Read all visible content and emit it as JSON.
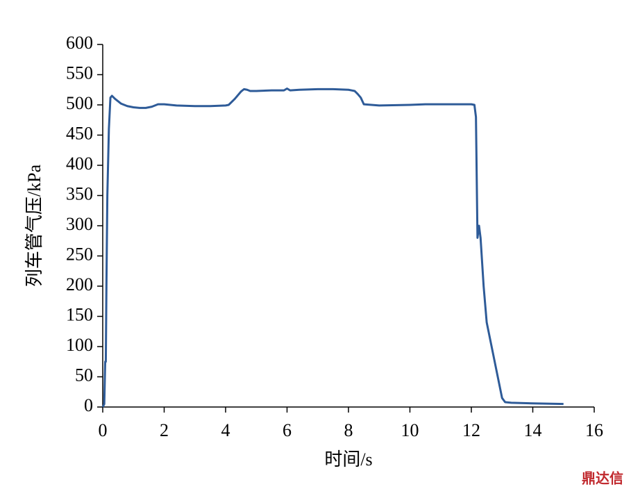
{
  "chart_data": {
    "type": "line",
    "xlabel": "时间/s",
    "ylabel": "列车管气压/kPa",
    "watermark": "鼎达信",
    "xlim": [
      0,
      16
    ],
    "xticks": [
      0,
      2,
      4,
      6,
      8,
      10,
      12,
      14,
      16
    ],
    "ylim": [
      0,
      600
    ],
    "yticks": [
      0,
      50,
      100,
      150,
      200,
      250,
      300,
      350,
      400,
      450,
      500,
      550,
      600
    ],
    "grid": false,
    "series": [
      {
        "color": "#2e5b98",
        "x": [
          0,
          0.05,
          0.08,
          0.1,
          0.12,
          0.15,
          0.2,
          0.25,
          0.3,
          0.4,
          0.6,
          0.8,
          1.0,
          1.2,
          1.4,
          1.6,
          1.8,
          2.0,
          2.4,
          3.0,
          3.5,
          4.0,
          4.1,
          4.3,
          4.5,
          4.6,
          4.7,
          4.8,
          5.0,
          5.5,
          5.9,
          6.0,
          6.1,
          6.4,
          7.0,
          7.5,
          8.0,
          8.2,
          8.3,
          8.4,
          8.5,
          9.0,
          10,
          10.5,
          11,
          12.0,
          12.1,
          12.15,
          12.2,
          12.25,
          12.3,
          12.4,
          12.5,
          12.7,
          12.9,
          13.0,
          13.1,
          13.3,
          14,
          15
        ],
        "values": [
          0,
          5,
          75,
          75,
          200,
          350,
          460,
          512,
          515,
          510,
          502,
          498,
          496,
          495,
          495,
          497,
          501,
          501,
          499,
          498,
          498,
          499,
          500,
          510,
          522,
          526,
          525,
          523,
          523,
          524,
          524,
          527,
          524,
          525,
          526,
          526,
          525,
          523,
          518,
          512,
          501,
          499,
          500,
          501,
          501,
          501,
          500,
          480,
          280,
          300,
          280,
          200,
          140,
          90,
          40,
          15,
          8,
          7,
          6,
          5
        ]
      }
    ]
  }
}
